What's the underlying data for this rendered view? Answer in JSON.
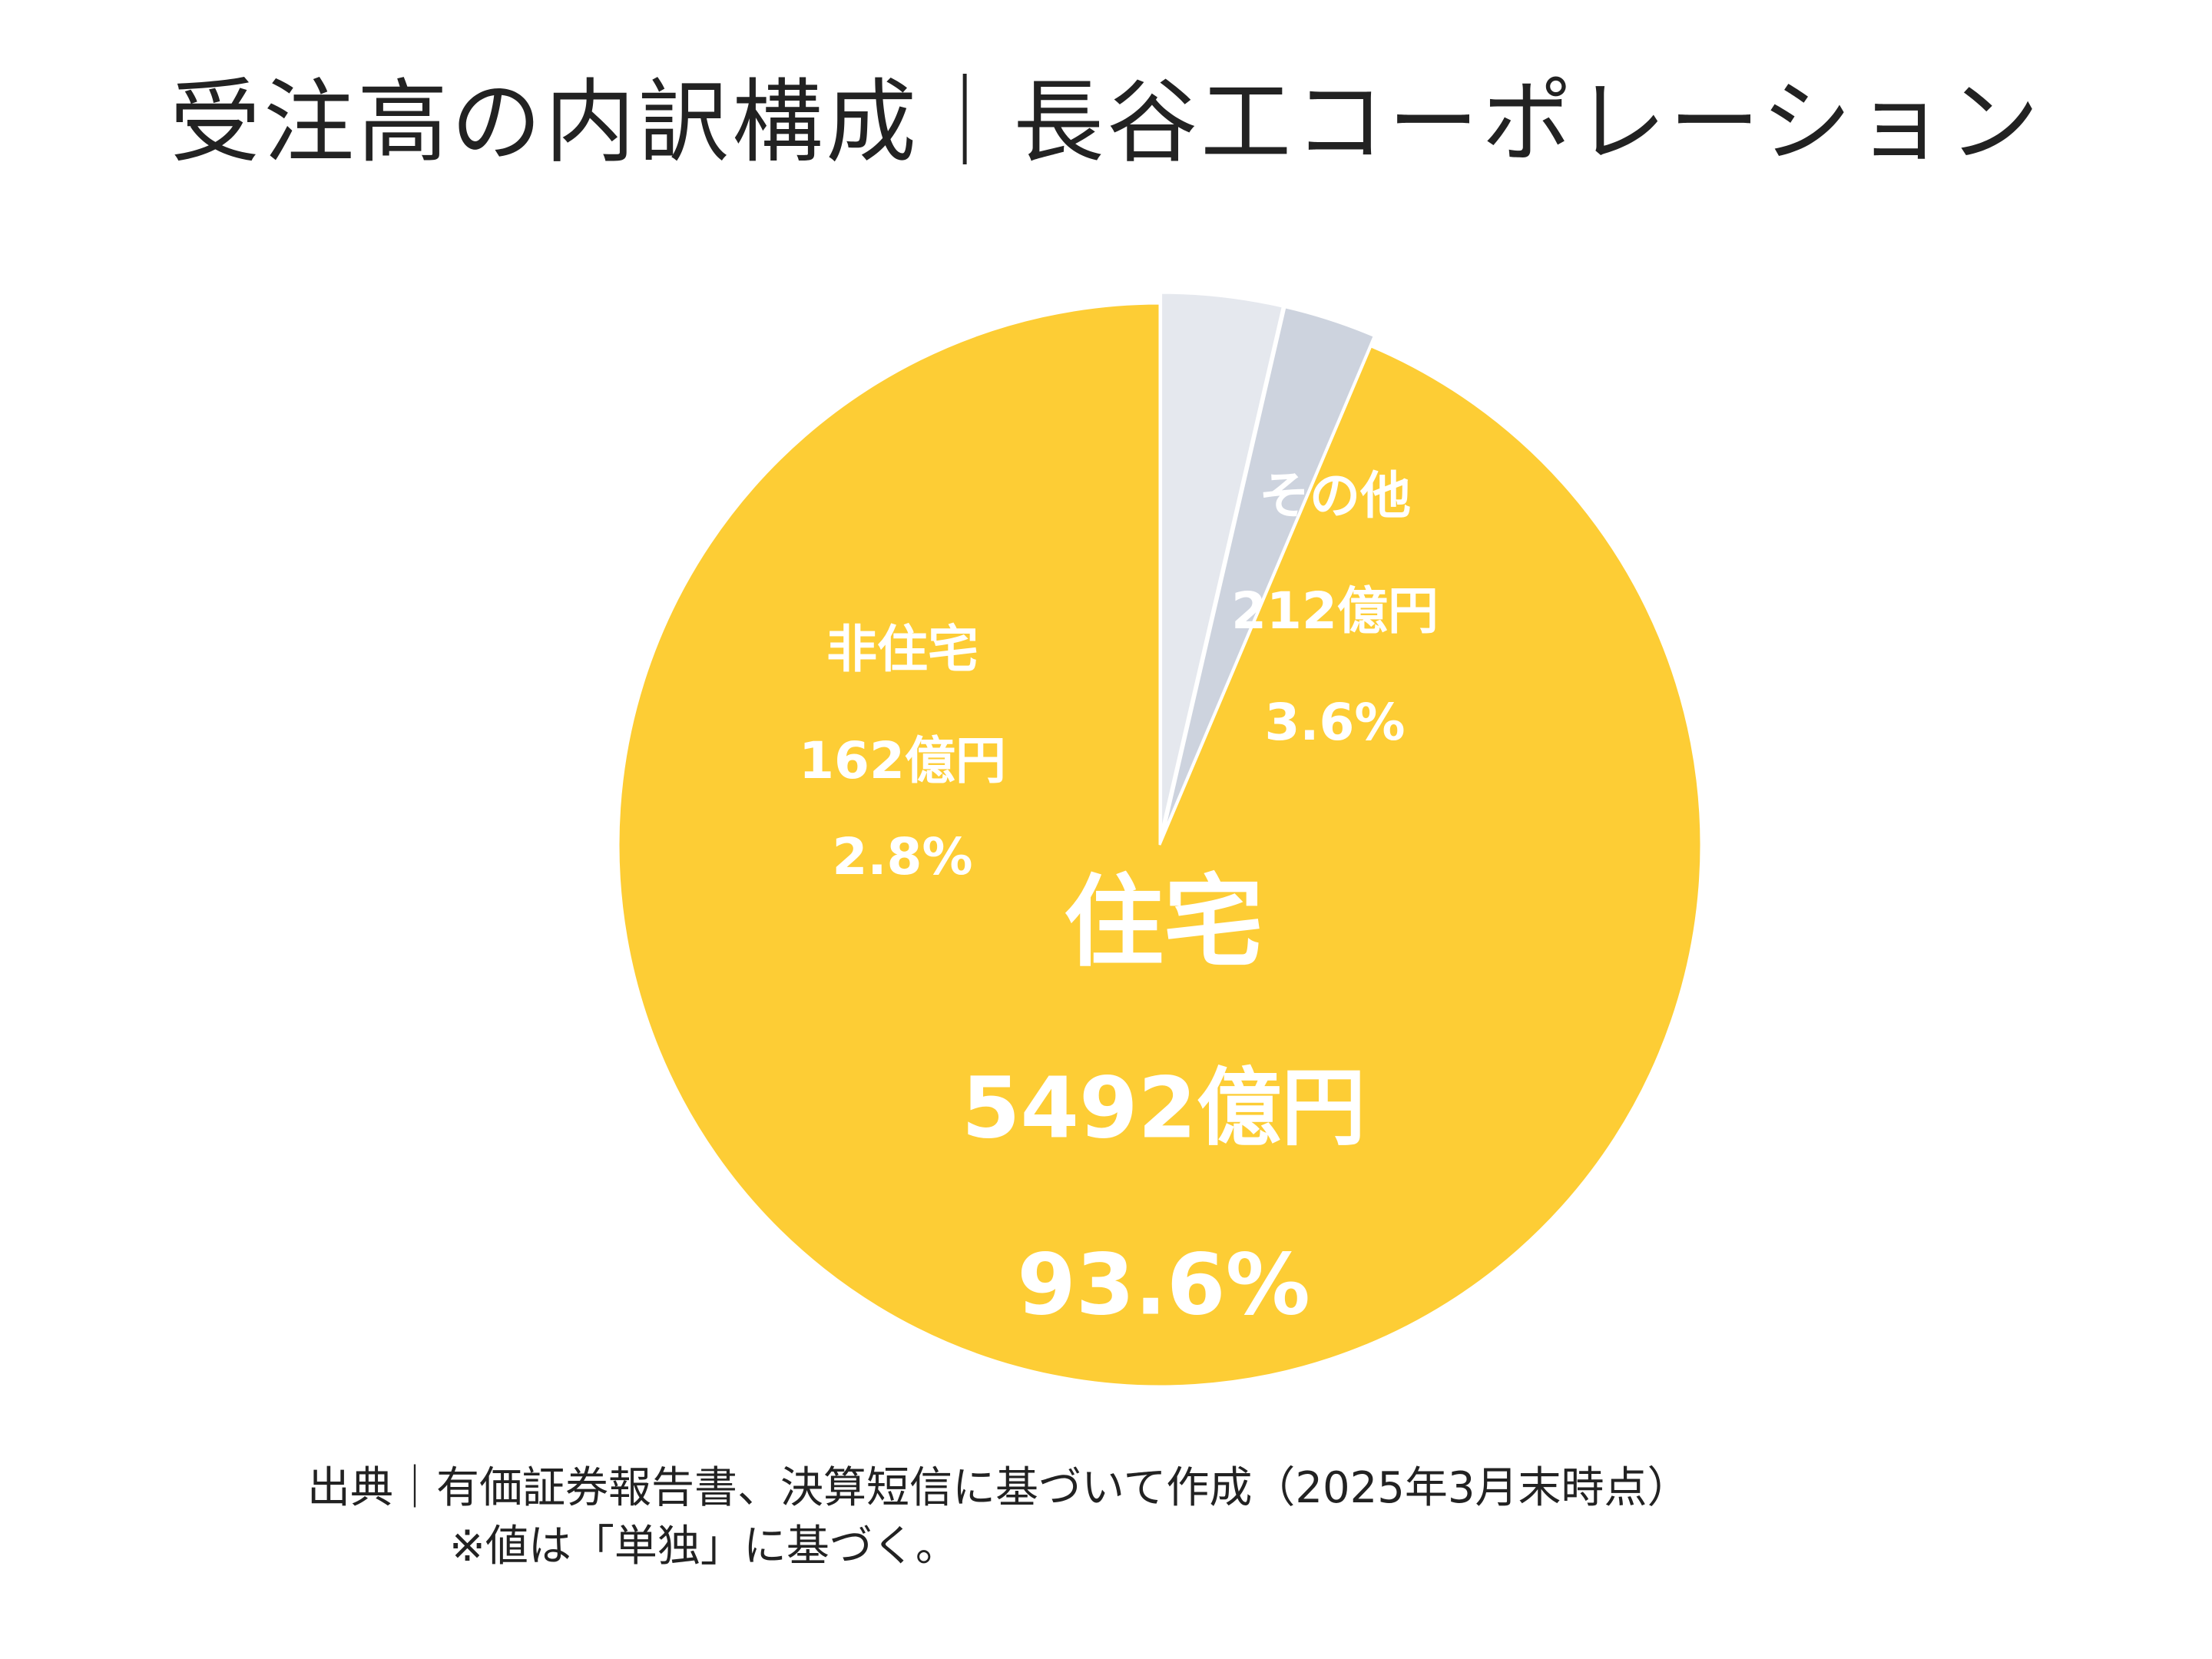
{
  "title": "受注高の内訳構成｜長谷工コーポレーション",
  "colors": {
    "housing": "#FDCD35",
    "nonhousing": "#CDD3DE",
    "other": "#E5E8EE",
    "label": "#FFFFFF",
    "text": "#222222"
  },
  "chart_data": {
    "type": "pie",
    "title": "受注高の内訳構成｜長谷工コーポレーション",
    "start_direction": "top",
    "order": "counterclockwise from top",
    "slices": [
      {
        "name": "住宅",
        "amount_label": "5492億円",
        "value": 5492,
        "percent": 93.6,
        "percent_label": "93.6%",
        "color": "#FDCD35"
      },
      {
        "name": "非住宅",
        "amount_label": "162億円",
        "value": 162,
        "percent": 2.8,
        "percent_label": "2.8%",
        "color": "#CDD3DE"
      },
      {
        "name": "その他",
        "amount_label": "212億円",
        "value": 212,
        "percent": 3.6,
        "percent_label": "3.6%",
        "color": "#E5E8EE"
      }
    ]
  },
  "source": {
    "line1": "出典｜有価証券報告書、決算短信に基づいて作成（2025年3月末時点）",
    "line2": "※値は「単独」に基づく。"
  }
}
